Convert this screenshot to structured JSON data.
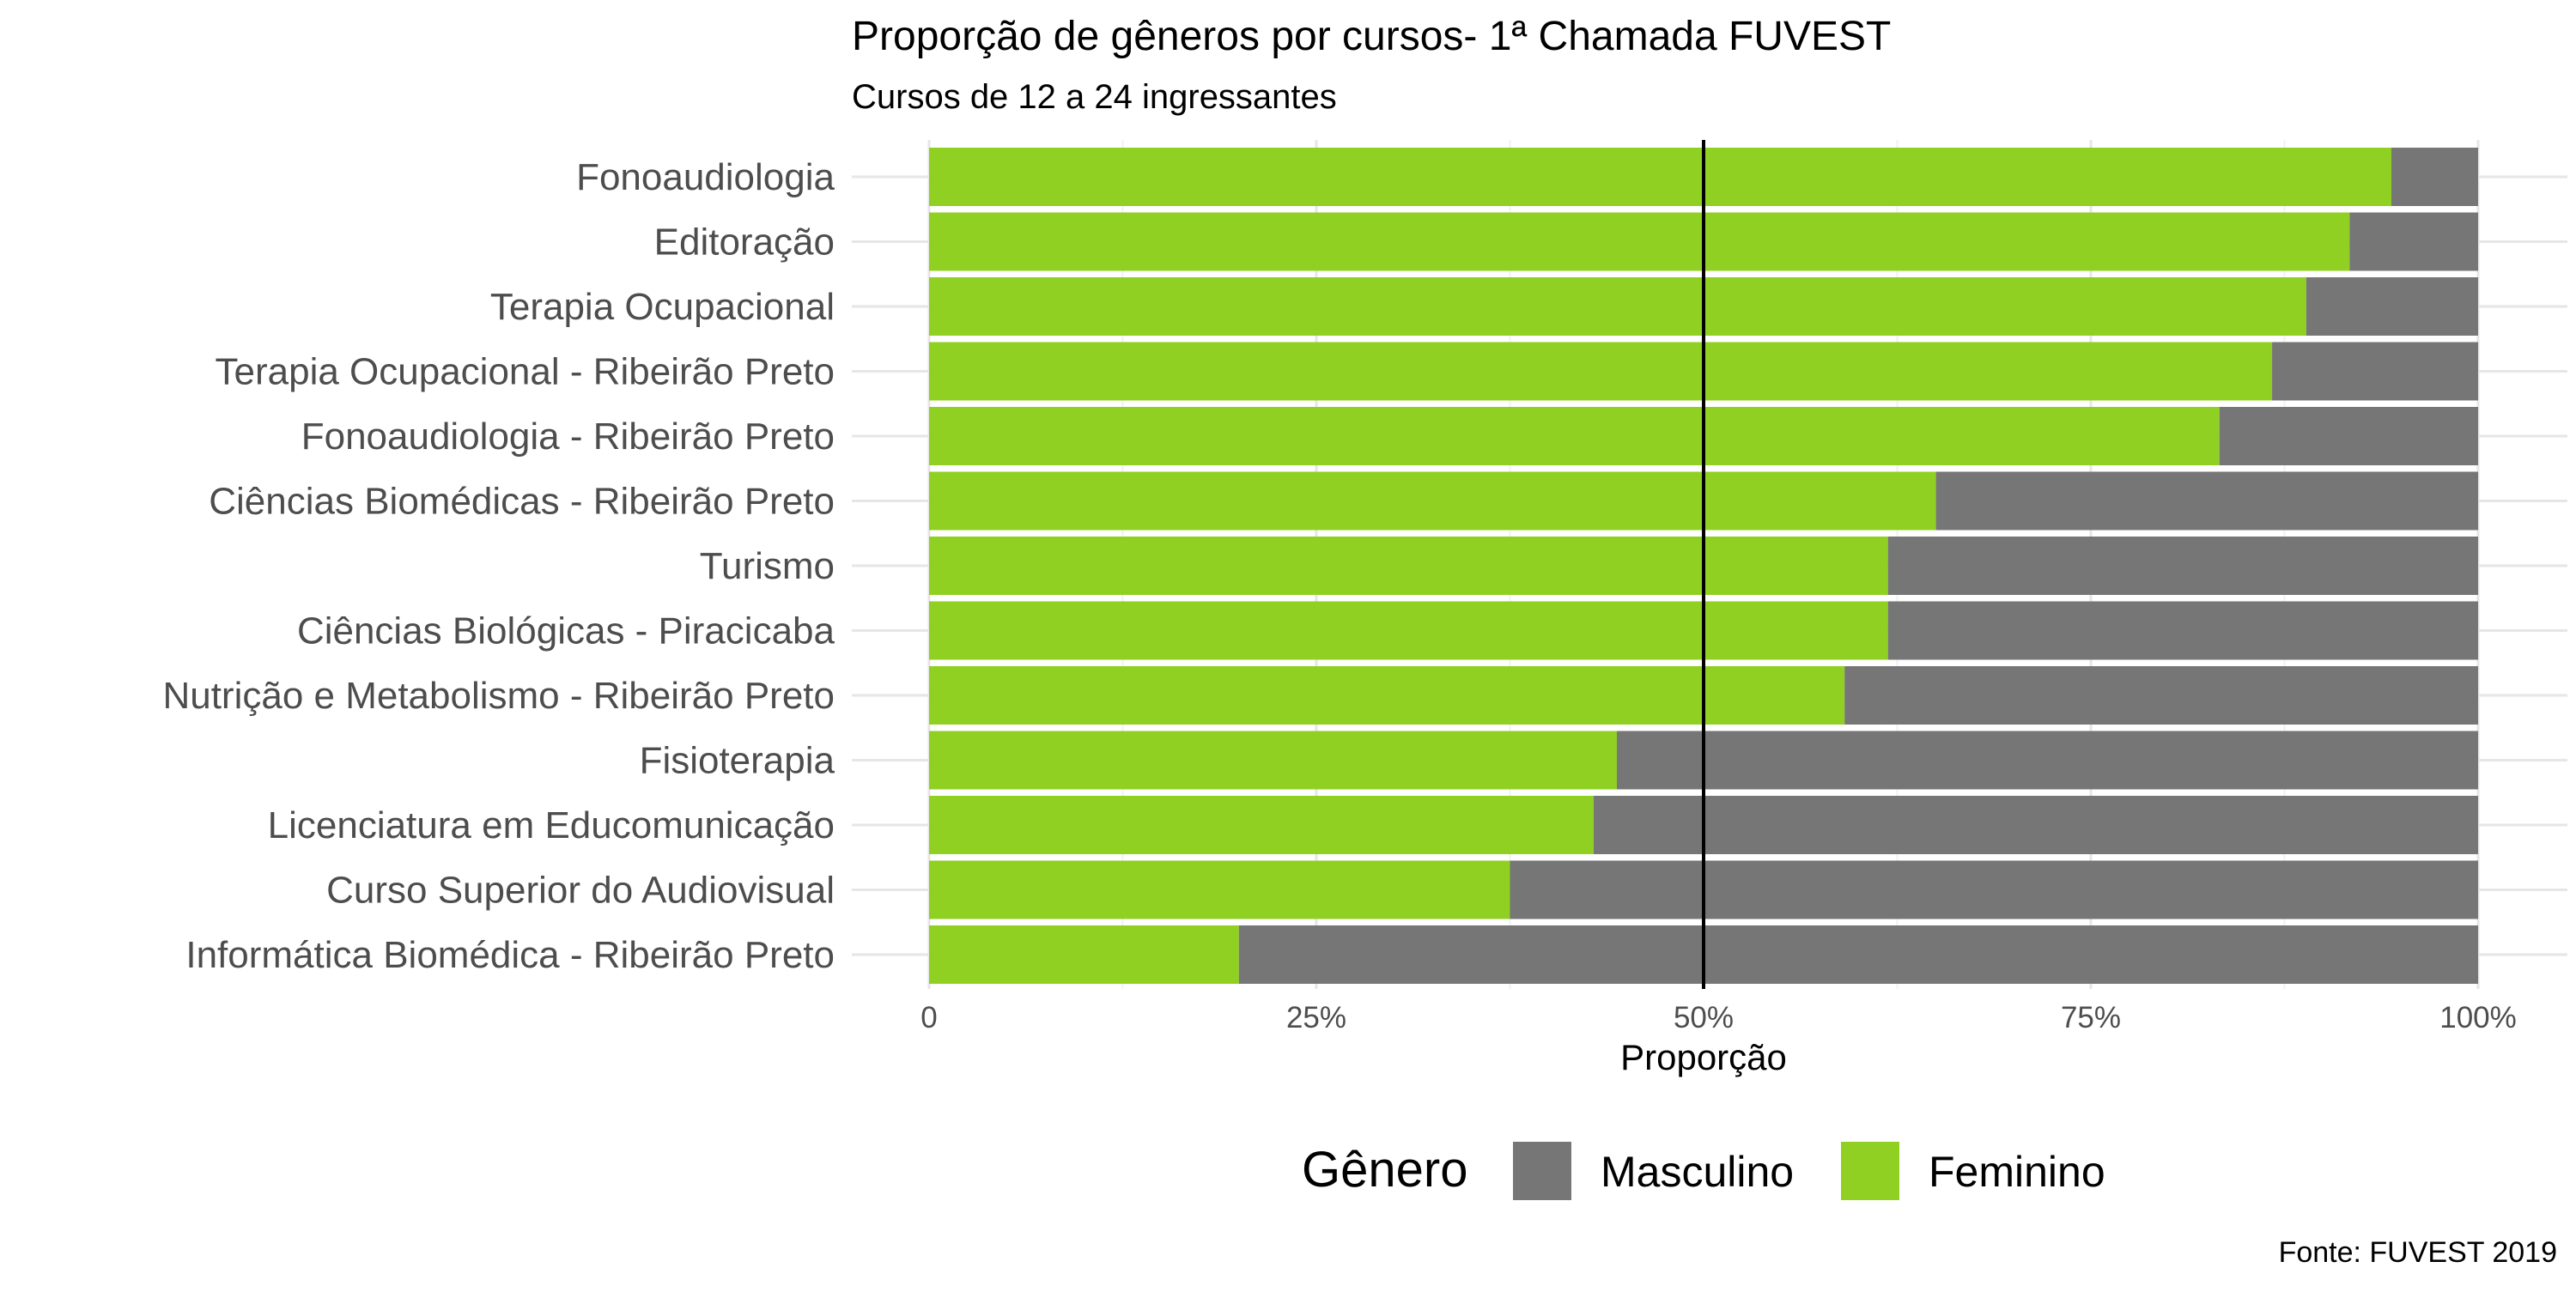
{
  "chart_data": {
    "type": "bar",
    "orientation": "horizontal",
    "stacked": true,
    "title": "Proporção de gêneros por cursos- 1ª Chamada FUVEST",
    "subtitle": "Cursos de 12 a 24 ingressantes",
    "xlabel": "Proporção",
    "ylabel": "",
    "caption": "Fonte: FUVEST 2019",
    "xlim": [
      0,
      1
    ],
    "x_ticks": [
      {
        "value": 0,
        "label": "0"
      },
      {
        "value": 0.25,
        "label": "25%"
      },
      {
        "value": 0.5,
        "label": "50%"
      },
      {
        "value": 0.75,
        "label": "75%"
      },
      {
        "value": 1,
        "label": "100%"
      }
    ],
    "reference_line": 0.5,
    "grid": true,
    "legend": {
      "title": "Gênero",
      "position": "bottom",
      "entries": [
        {
          "label": "Masculino",
          "color": "#767676"
        },
        {
          "label": "Feminino",
          "color": "#8fd022"
        }
      ]
    },
    "categories": [
      "Fonoaudiologia",
      "Editoração",
      "Terapia Ocupacional",
      "Terapia Ocupacional - Ribeirão Preto",
      "Fonoaudiologia - Ribeirão Preto",
      "Ciências Biomédicas - Ribeirão Preto",
      "Turismo",
      "Ciências Biológicas - Piracicaba",
      "Nutrição e Metabolismo - Ribeirão Preto",
      "Fisioterapia",
      "Licenciatura em Educomunicação",
      "Curso Superior do Audiovisual",
      "Informática Biomédica - Ribeirão Preto"
    ],
    "series": [
      {
        "name": "Feminino",
        "color": "#8fd022",
        "values": [
          0.944,
          0.917,
          0.889,
          0.867,
          0.833,
          0.65,
          0.619,
          0.619,
          0.591,
          0.444,
          0.429,
          0.375,
          0.2
        ]
      },
      {
        "name": "Masculino",
        "color": "#767676",
        "values": [
          0.056,
          0.083,
          0.111,
          0.133,
          0.167,
          0.35,
          0.381,
          0.381,
          0.409,
          0.556,
          0.571,
          0.625,
          0.8
        ]
      }
    ]
  }
}
